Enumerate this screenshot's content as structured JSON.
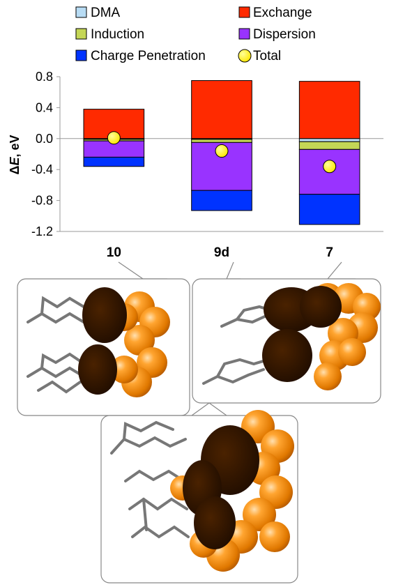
{
  "chart_data": {
    "type": "bar",
    "stacked": true,
    "categories": [
      "10",
      "9d",
      "7"
    ],
    "ylabel_prefix": "Δ",
    "ylabel_var": "E",
    "ylabel_suffix": ", eV",
    "ylim": [
      -1.2,
      0.8
    ],
    "yticks": [
      0.8,
      0.4,
      0.0,
      -0.4,
      -0.8,
      -1.2
    ],
    "ytick_labels": [
      "0.8",
      "0.4",
      "0.0",
      "-0.4",
      "-0.8",
      "-1.2"
    ],
    "zero_line": true,
    "legend_position": "top",
    "series": [
      {
        "name": "Exchange",
        "color": "#ff2a00",
        "values": [
          0.38,
          0.75,
          0.74
        ]
      },
      {
        "name": "DMA",
        "color": "#b8dcf4",
        "values": [
          -0.01,
          -0.01,
          -0.04
        ]
      },
      {
        "name": "Induction",
        "color": "#c4d656",
        "values": [
          -0.02,
          -0.04,
          -0.1
        ]
      },
      {
        "name": "Dispersion",
        "color": "#9933ff",
        "values": [
          -0.21,
          -0.62,
          -0.58
        ]
      },
      {
        "name": "Charge Penetration",
        "color": "#0033ff",
        "values": [
          -0.12,
          -0.26,
          -0.39
        ]
      }
    ],
    "total": {
      "name": "Total",
      "color": "#ffee00",
      "values": [
        0.01,
        -0.16,
        -0.36
      ]
    },
    "legend_order": [
      "DMA",
      "Exchange",
      "Induction",
      "Dispersion",
      "Charge Penetration",
      "Total"
    ]
  },
  "figure": {
    "panels": [
      {
        "ref": "10",
        "description": "stacked dimer of cyclohexane chains with space-filling contact surface"
      },
      {
        "ref": "9d",
        "description": "stacked dimer of phenyl rings with space-filling contact surface"
      },
      {
        "ref": "7",
        "description": "stacked dimer of larger saturated frameworks with space-filling contact surface"
      }
    ],
    "colors": {
      "molecule_shadow": "#2a1100",
      "molecule_sphere": "#ff9a1a",
      "stick": "#777777"
    }
  }
}
